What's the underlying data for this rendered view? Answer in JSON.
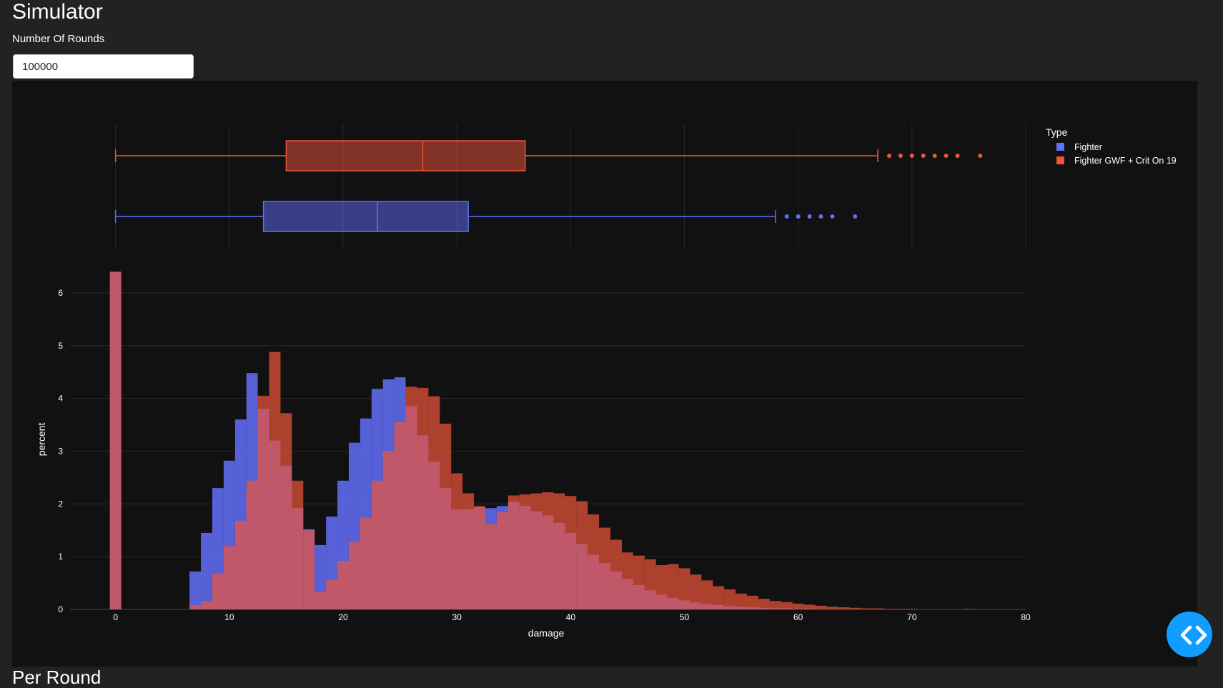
{
  "page": {
    "title": "Simulator",
    "rounds_label": "Number Of Rounds",
    "rounds_value": "100000",
    "next_heading": "Per Round"
  },
  "colors": {
    "background": "#222222",
    "plot_bg": "#111111",
    "fighter": "#636efa",
    "gwf": "#ef553b",
    "debug_button": "#119dff"
  },
  "icons": {
    "debug_button": "code-icon"
  },
  "chart_data": {
    "type": "histogram",
    "xlabel": "damage",
    "ylabel": "percent",
    "xlim": [
      -4,
      80
    ],
    "ylim": [
      0,
      6.5
    ],
    "x_ticks": [
      0,
      10,
      20,
      30,
      40,
      50,
      60,
      70,
      80
    ],
    "y_ticks": [
      0,
      1,
      2,
      3,
      4,
      5,
      6
    ],
    "bin_width": 1,
    "grid": true,
    "legend": {
      "title": "Type",
      "position": "top-right",
      "entries": [
        "Fighter",
        "Fighter GWF + Crit On 19"
      ]
    },
    "series": [
      {
        "name": "Fighter",
        "color": "#636efa",
        "hist_bins": [
          [
            0,
            6.4
          ],
          [
            7,
            0.72
          ],
          [
            8,
            1.45
          ],
          [
            9,
            2.3
          ],
          [
            10,
            2.82
          ],
          [
            11,
            3.6
          ],
          [
            12,
            4.48
          ],
          [
            13,
            3.8
          ],
          [
            14,
            3.2
          ],
          [
            15,
            2.72
          ],
          [
            16,
            1.92
          ],
          [
            17,
            1.52
          ],
          [
            18,
            1.22
          ],
          [
            19,
            1.76
          ],
          [
            20,
            2.44
          ],
          [
            21,
            3.16
          ],
          [
            22,
            3.62
          ],
          [
            23,
            4.18
          ],
          [
            24,
            4.36
          ],
          [
            25,
            4.4
          ],
          [
            26,
            3.85
          ],
          [
            27,
            3.3
          ],
          [
            28,
            2.8
          ],
          [
            29,
            2.3
          ],
          [
            30,
            1.9
          ],
          [
            31,
            1.9
          ],
          [
            32,
            1.94
          ],
          [
            33,
            1.92
          ],
          [
            34,
            1.96
          ],
          [
            35,
            2.04
          ],
          [
            36,
            1.96
          ],
          [
            37,
            1.86
          ],
          [
            38,
            1.78
          ],
          [
            39,
            1.64
          ],
          [
            40,
            1.45
          ],
          [
            41,
            1.24
          ],
          [
            42,
            1.04
          ],
          [
            43,
            0.88
          ],
          [
            44,
            0.72
          ],
          [
            45,
            0.58
          ],
          [
            46,
            0.46
          ],
          [
            47,
            0.36
          ],
          [
            48,
            0.28
          ],
          [
            49,
            0.22
          ],
          [
            50,
            0.17
          ],
          [
            51,
            0.13
          ],
          [
            52,
            0.1
          ],
          [
            53,
            0.08
          ],
          [
            54,
            0.06
          ],
          [
            55,
            0.05
          ],
          [
            56,
            0.04
          ],
          [
            57,
            0.03
          ],
          [
            58,
            0.02
          ],
          [
            59,
            0.02
          ],
          [
            60,
            0.01
          ],
          [
            61,
            0.01
          ]
        ],
        "box": {
          "min": 0,
          "q1": 13,
          "median": 23,
          "q3": 31,
          "whisker_high": 58,
          "outliers": [
            59,
            60,
            61,
            62,
            63,
            65
          ]
        }
      },
      {
        "name": "Fighter GWF + Crit On 19",
        "color": "#ef553b",
        "hist_bins": [
          [
            0,
            6.4
          ],
          [
            7,
            0.08
          ],
          [
            8,
            0.16
          ],
          [
            9,
            0.68
          ],
          [
            10,
            1.2
          ],
          [
            11,
            1.68
          ],
          [
            12,
            2.44
          ],
          [
            13,
            4.05
          ],
          [
            14,
            4.88
          ],
          [
            15,
            3.72
          ],
          [
            16,
            2.44
          ],
          [
            17,
            1.5
          ],
          [
            18,
            0.34
          ],
          [
            19,
            0.56
          ],
          [
            20,
            0.92
          ],
          [
            21,
            1.28
          ],
          [
            22,
            1.74
          ],
          [
            23,
            2.44
          ],
          [
            24,
            3.0
          ],
          [
            25,
            3.55
          ],
          [
            26,
            4.22
          ],
          [
            27,
            4.2
          ],
          [
            28,
            4.04
          ],
          [
            29,
            3.52
          ],
          [
            30,
            2.58
          ],
          [
            31,
            2.2
          ],
          [
            32,
            1.96
          ],
          [
            33,
            1.62
          ],
          [
            34,
            1.84
          ],
          [
            35,
            2.16
          ],
          [
            36,
            2.18
          ],
          [
            37,
            2.2
          ],
          [
            38,
            2.22
          ],
          [
            39,
            2.2
          ],
          [
            40,
            2.15
          ],
          [
            41,
            2.05
          ],
          [
            42,
            1.8
          ],
          [
            43,
            1.55
          ],
          [
            44,
            1.32
          ],
          [
            45,
            1.08
          ],
          [
            46,
            1.02
          ],
          [
            47,
            0.95
          ],
          [
            48,
            0.84
          ],
          [
            49,
            0.86
          ],
          [
            50,
            0.78
          ],
          [
            51,
            0.66
          ],
          [
            52,
            0.55
          ],
          [
            53,
            0.44
          ],
          [
            54,
            0.38
          ],
          [
            55,
            0.3
          ],
          [
            56,
            0.26
          ],
          [
            57,
            0.2
          ],
          [
            58,
            0.16
          ],
          [
            59,
            0.14
          ],
          [
            60,
            0.11
          ],
          [
            61,
            0.09
          ],
          [
            62,
            0.07
          ],
          [
            63,
            0.05
          ],
          [
            64,
            0.04
          ],
          [
            65,
            0.03
          ],
          [
            66,
            0.02
          ],
          [
            67,
            0.02
          ],
          [
            68,
            0.01
          ],
          [
            69,
            0.01
          ],
          [
            70,
            0.01
          ],
          [
            75,
            0.01
          ]
        ],
        "box": {
          "min": 0,
          "q1": 15,
          "median": 27,
          "q3": 36,
          "whisker_high": 67,
          "outliers": [
            68,
            69,
            70,
            71,
            72,
            73,
            74,
            76
          ]
        }
      }
    ]
  }
}
